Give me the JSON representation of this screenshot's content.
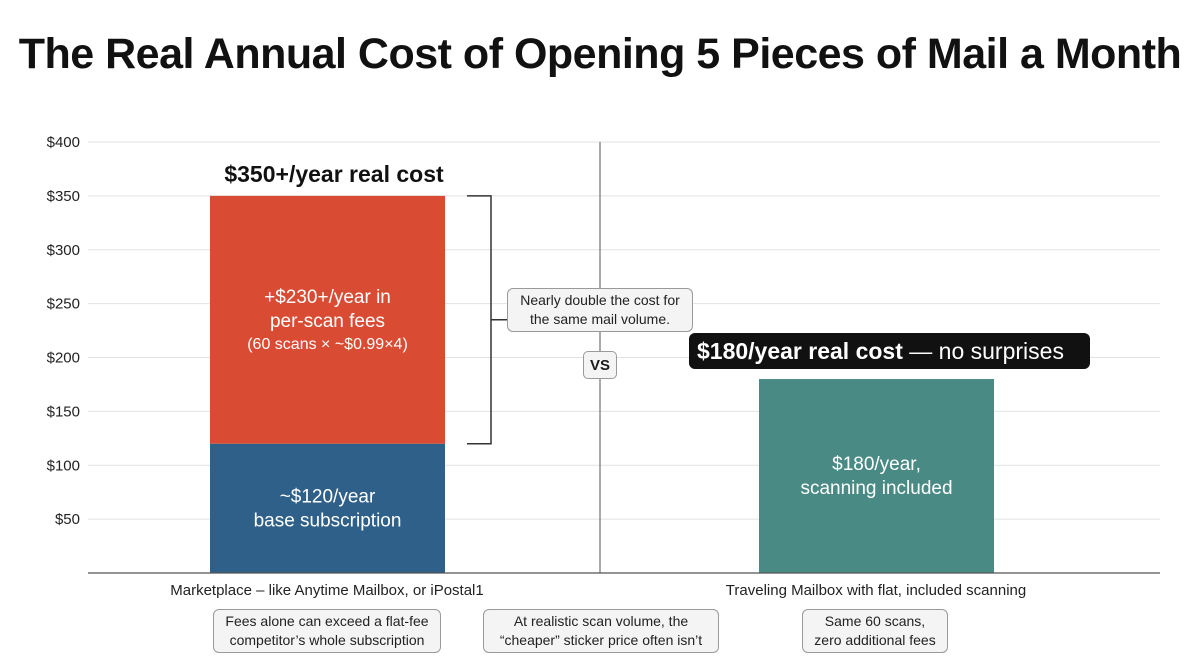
{
  "title": "The Real Annual Cost of Opening 5 Pieces of Mail a Month",
  "chart_data": {
    "type": "bar",
    "stacked": true,
    "ylim": [
      0,
      400
    ],
    "yticks": [
      "$50",
      "$100",
      "$150",
      "$200",
      "$250",
      "$300",
      "$350",
      "$400"
    ],
    "ytick_values": [
      50,
      100,
      150,
      200,
      250,
      300,
      350,
      400
    ],
    "grid": true,
    "categories": [
      "Marketplace – like Anytime Mailbox, or iPostal1",
      "Traveling Mailbox with flat, included scanning"
    ],
    "bars": [
      {
        "category_index": 0,
        "total": 350,
        "segments": [
          {
            "value": 120,
            "color": "#2f6089",
            "label_lines": [
              "~$120/year",
              "base subscription"
            ]
          },
          {
            "value": 230,
            "color": "#d94c33",
            "label_lines": [
              "+$230+/year in",
              "per-scan fees"
            ],
            "note": "(60 scans × ~$0.99×4)"
          }
        ],
        "headline": "$350+/year real cost"
      },
      {
        "category_index": 1,
        "total": 180,
        "segments": [
          {
            "value": 180,
            "color": "#4a8a84",
            "label_lines": [
              "$180/year,",
              "scanning included"
            ]
          }
        ],
        "headline_bold": "$180/year real cost",
        "headline_rest": " — no surprises"
      }
    ],
    "annotations": {
      "bracket_note": "Nearly double the cost for the same mail volume.",
      "vs": "VS",
      "left_note": "Fees alone can exceed a flat-fee competitor’s whole subscription",
      "middle_note": "At realistic scan volume, the “cheaper” sticker price often isn’t",
      "right_note": "Same 60 scans, zero additional fees"
    }
  },
  "colors": {
    "base": "#2f6089",
    "fees": "#d94c33",
    "flat": "#4a8a84",
    "grid": "#e2e2e2",
    "axis": "#555555"
  }
}
